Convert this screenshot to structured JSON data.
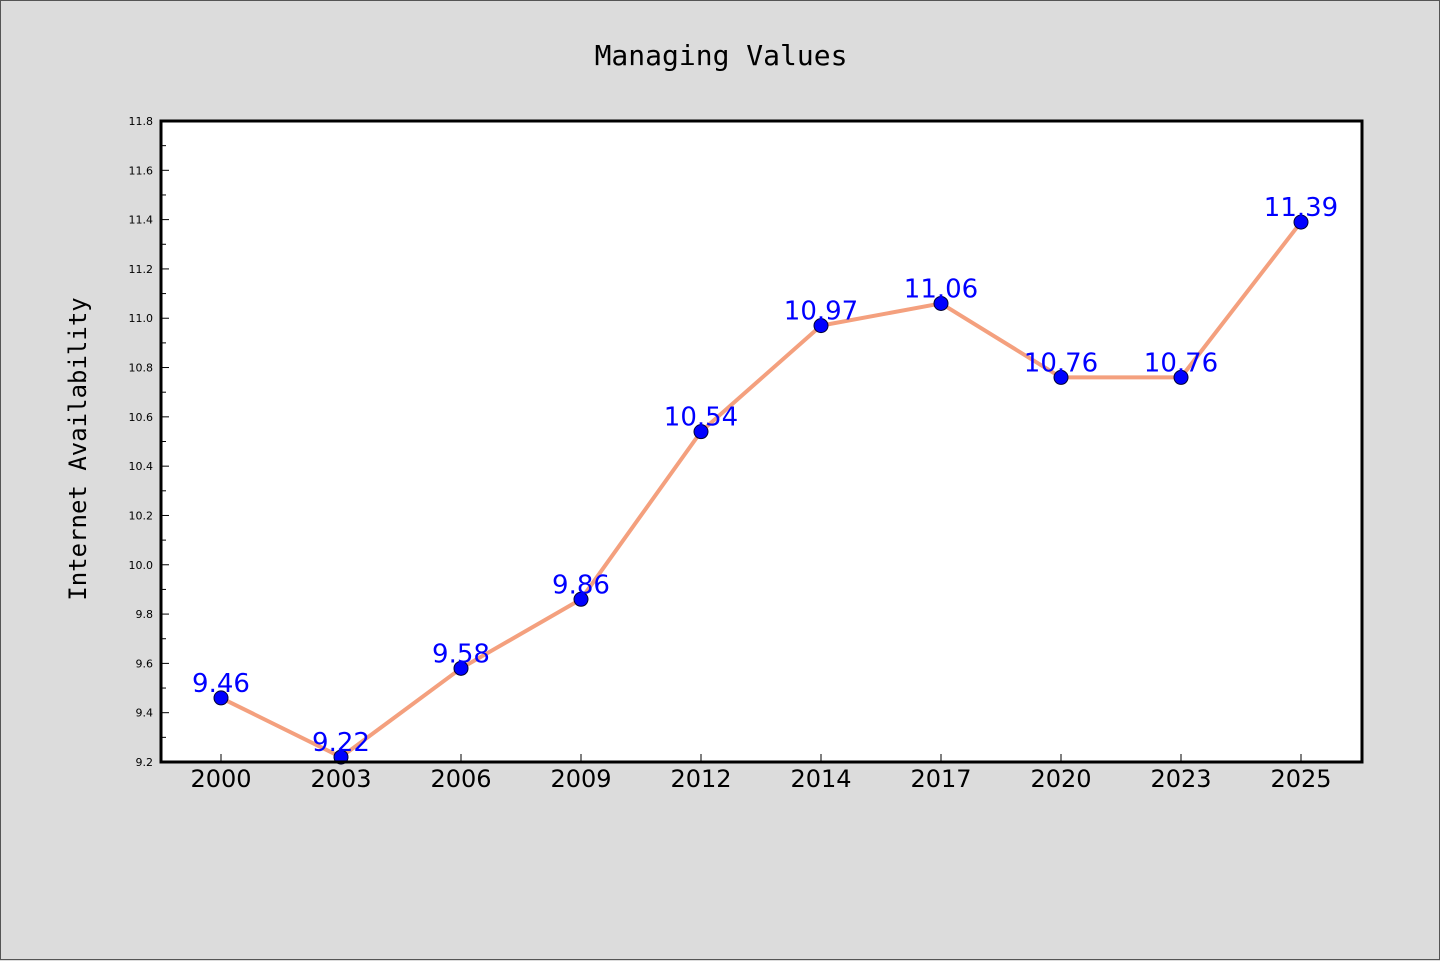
{
  "chart_data": {
    "type": "line",
    "title": "Managing Values",
    "xlabel": "",
    "ylabel": "Internet Availability",
    "categories": [
      "2000",
      "2003",
      "2006",
      "2009",
      "2012",
      "2014",
      "2017",
      "2020",
      "2023",
      "2025"
    ],
    "series": [
      {
        "values": [
          9.46,
          9.22,
          9.58,
          9.86,
          10.54,
          10.97,
          11.06,
          10.76,
          10.76,
          11.39
        ],
        "line_color": "#f4a07e",
        "marker_color": "#0000ff"
      }
    ],
    "data_labels": [
      "9.46",
      "9.22",
      "9.58",
      "9.86",
      "10.54",
      "10.97",
      "11.06",
      "10.76",
      "10.76",
      "11.39"
    ],
    "yticks": [
      "9.2",
      "9.4",
      "9.6",
      "9.8",
      "10.0",
      "10.2",
      "10.4",
      "10.6",
      "10.8",
      "11.0",
      "11.2",
      "11.4",
      "11.6",
      "11.8"
    ],
    "ylim": [
      9.2,
      11.8
    ],
    "grid": false,
    "legend": "none",
    "label_color": "#0000ff",
    "background": "#dcdcdc",
    "plot_background": "#ffffff"
  }
}
